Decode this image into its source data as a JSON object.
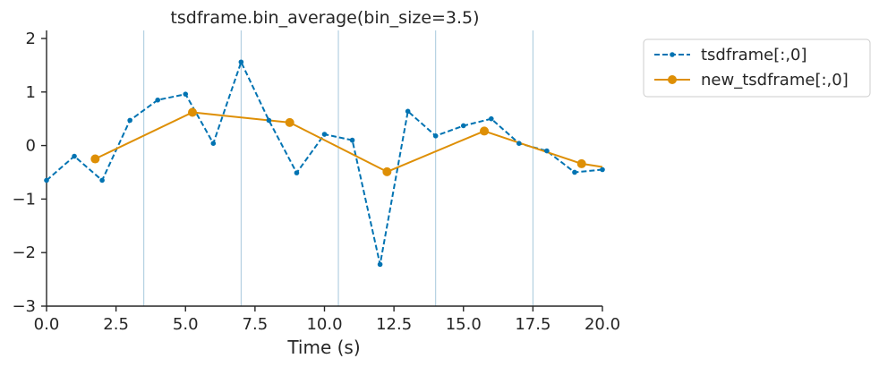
{
  "chart_data": {
    "type": "line",
    "title": "tsdframe.bin_average(bin_size=3.5)",
    "xlabel": "Time (s)",
    "ylabel": "",
    "xlim": [
      0,
      20
    ],
    "ylim": [
      -3,
      2.15
    ],
    "xticks": [
      0,
      2.5,
      5,
      7.5,
      10,
      12.5,
      15,
      17.5,
      20
    ],
    "xtick_labels": [
      "0.0",
      "2.5",
      "5.0",
      "7.5",
      "10.0",
      "12.5",
      "15.0",
      "17.5",
      "20.0"
    ],
    "yticks": [
      2,
      1,
      0,
      -1,
      -2,
      -3
    ],
    "ytick_labels": [
      "2",
      "1",
      "0",
      "−1",
      "−2",
      "−3"
    ],
    "bin_edges": [
      3.5,
      7,
      10.5,
      14,
      17.5
    ],
    "grid": false,
    "legend_position": "outside-top-right",
    "series": [
      {
        "name": "tsdframe[:,0]",
        "color": "#0173b2",
        "style": "dashed",
        "marker": "small-dot",
        "x": [
          0,
          1,
          2,
          3,
          4,
          5,
          6,
          7,
          8,
          9,
          10,
          11,
          12,
          13,
          14,
          15,
          16,
          17,
          18,
          19,
          20
        ],
        "y": [
          -0.65,
          -0.2,
          -0.65,
          0.47,
          0.85,
          0.96,
          0.04,
          1.56,
          0.47,
          -0.51,
          0.21,
          0.1,
          -2.22,
          0.64,
          0.18,
          0.37,
          0.5,
          0.04,
          -0.1,
          -0.5,
          -0.45
        ]
      },
      {
        "name": "new_tsdframe[:,0]",
        "color": "#de8f05",
        "style": "solid",
        "marker": "large-dot",
        "x": [
          0,
          1.75,
          5.25,
          8.75,
          12.25,
          15.75,
          19.25,
          20
        ],
        "y": [
          null,
          -0.25,
          0.62,
          0.43,
          -0.49,
          0.27,
          -0.34,
          -0.4
        ]
      }
    ]
  }
}
